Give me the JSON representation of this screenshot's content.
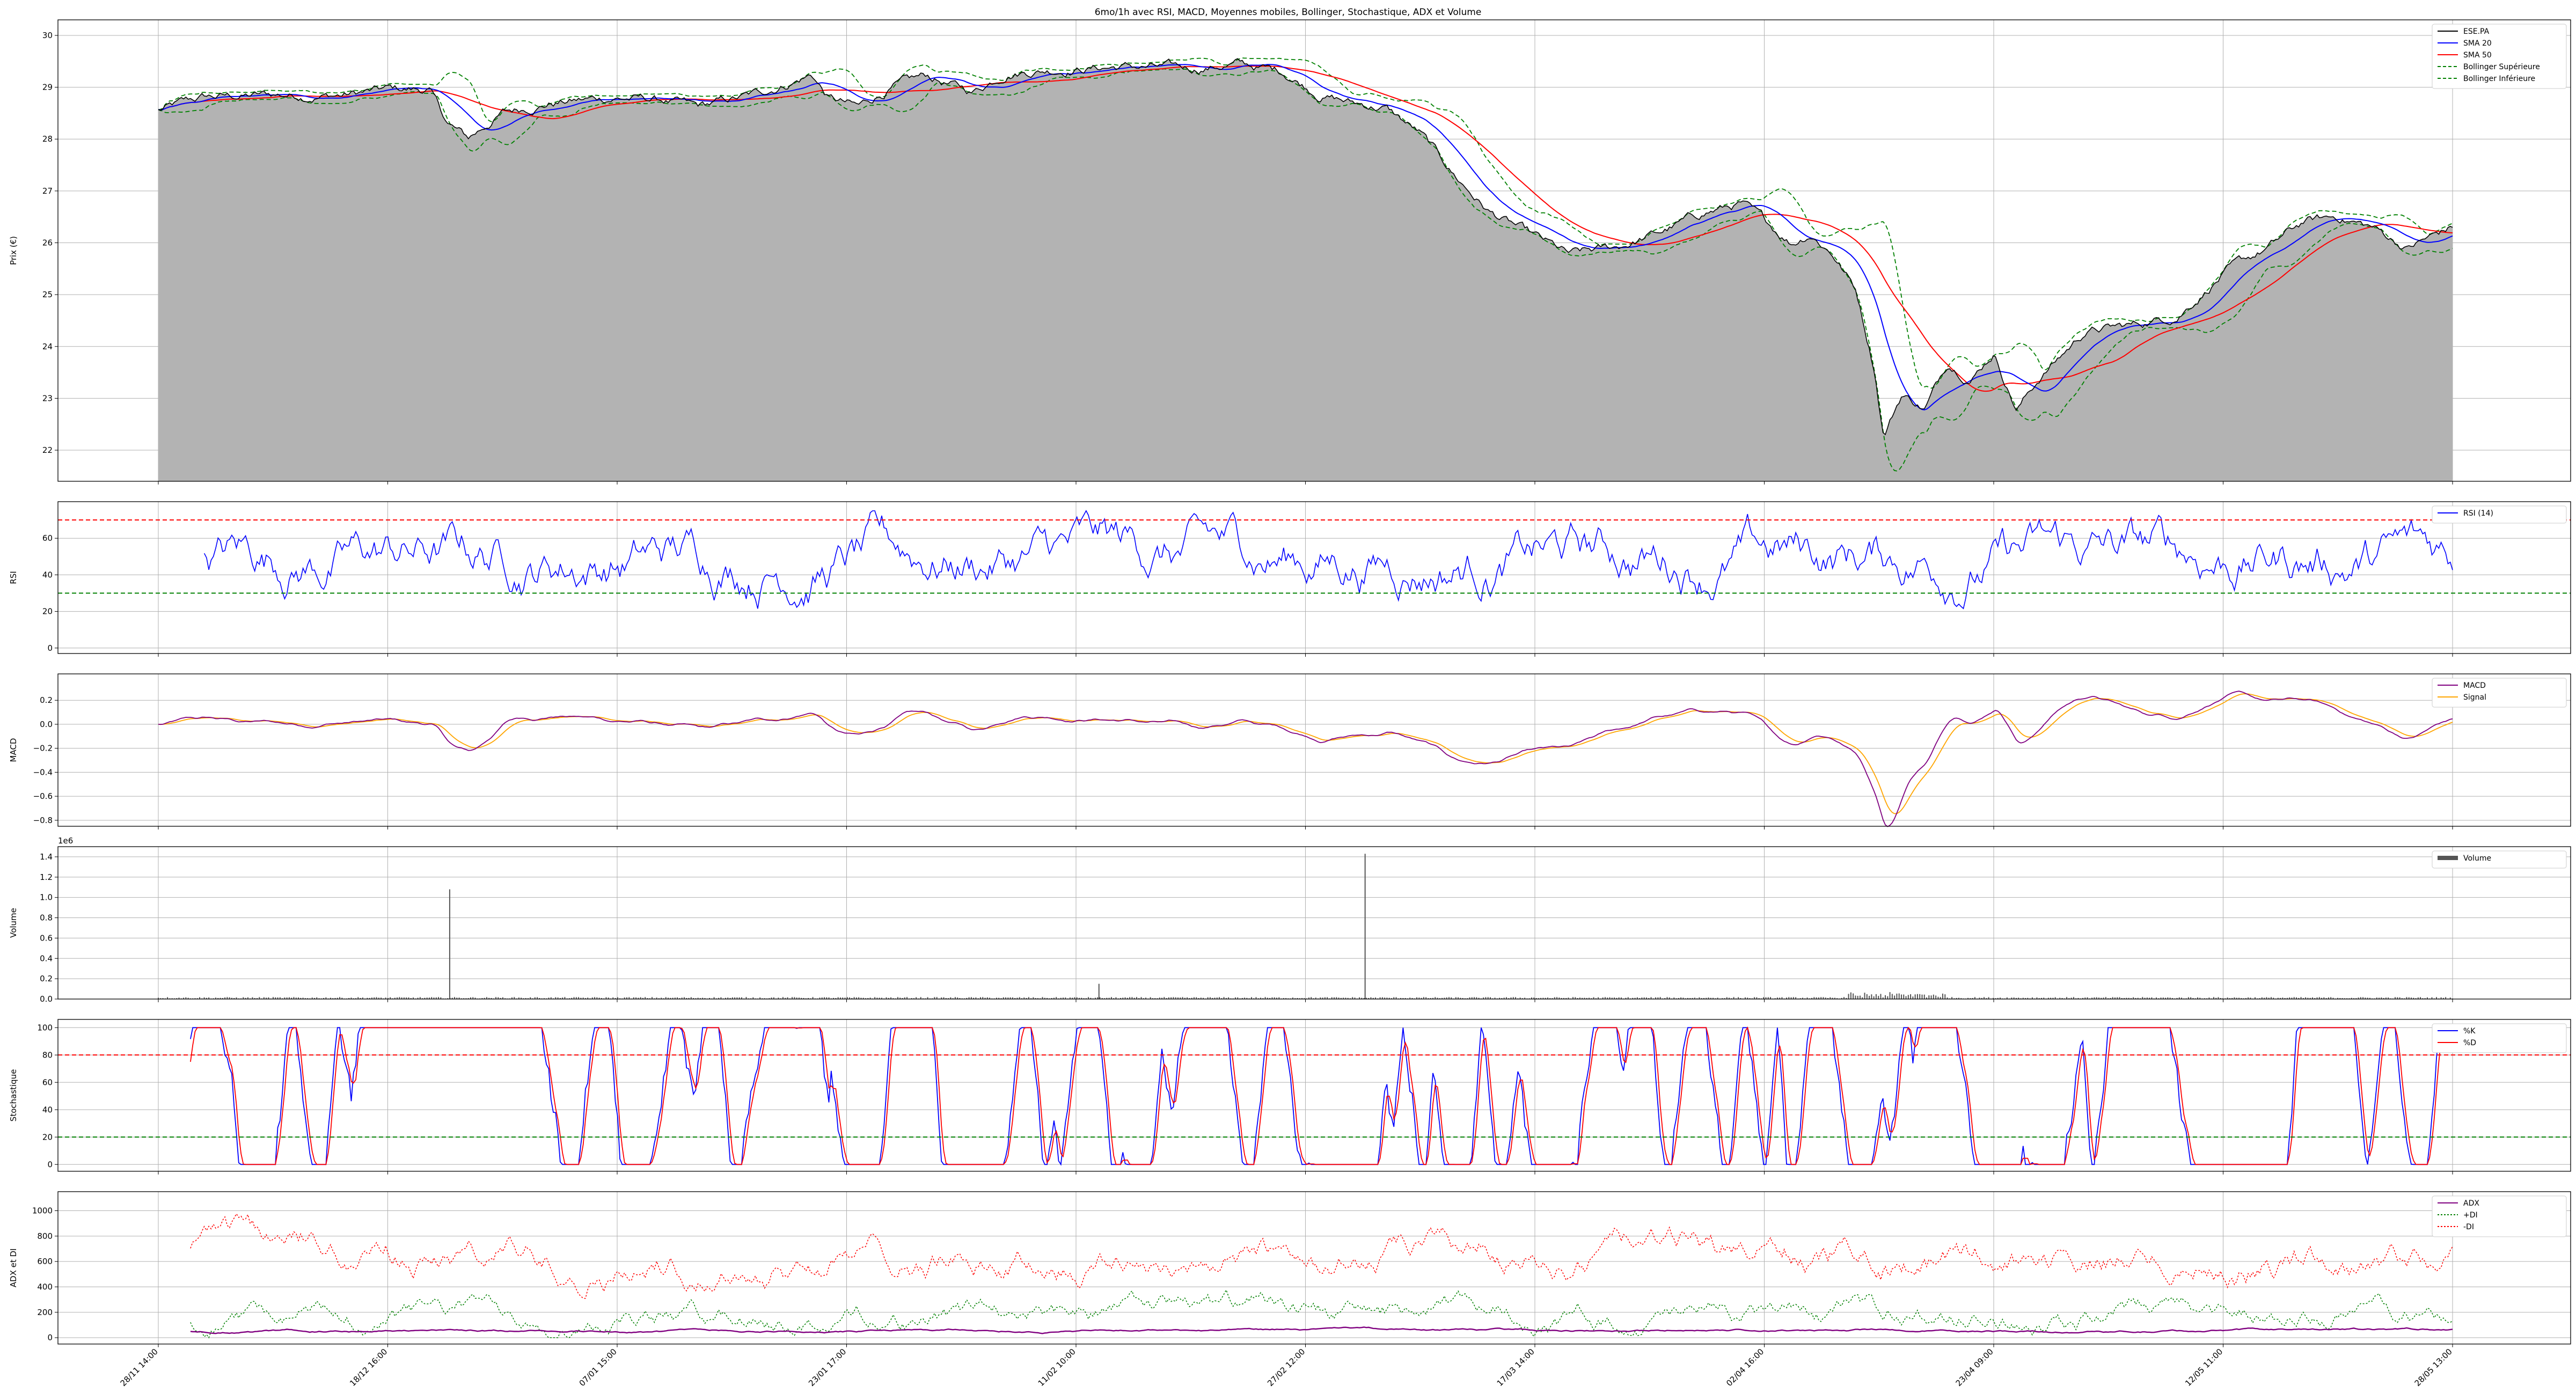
{
  "title": "6mo/1h avec RSI, MACD, Moyennes mobiles, Bollinger, Stochastique, ADX et Volume",
  "colors": {
    "price": "#000000",
    "price_fill": "#b3b3b3",
    "sma20": "#0000ff",
    "sma50": "#ff0000",
    "bollinger": "#008000",
    "rsi": "#0000ff",
    "overbought": "#ff0000",
    "oversold": "#008000",
    "macd": "#800080",
    "signal": "#ffa500",
    "volume": "#555555",
    "k": "#0000ff",
    "d": "#ff0000",
    "adx": "#800080",
    "plus_di": "#008000",
    "minus_di": "#ff0000"
  },
  "chart_data": [
    {
      "id": "price",
      "type": "area",
      "ylabel": "Prix (€)",
      "ylim": [
        21.4,
        30.3
      ],
      "yticks": [
        22,
        23,
        24,
        25,
        26,
        27,
        28,
        29,
        30
      ],
      "grid": true,
      "legend_position": "top-right",
      "legend": [
        "ESE.PA",
        "SMA 20",
        "SMA 50",
        "Bollinger Supérieure",
        "Bollinger Inférieure"
      ],
      "series": [
        {
          "name": "ESE.PA",
          "x": [
            0,
            5,
            10,
            15,
            20,
            25,
            30,
            34,
            38,
            42,
            46,
            50,
            55,
            60,
            65,
            70,
            74,
            78,
            81,
            84,
            87,
            90,
            93,
            96,
            100
          ],
          "y": [
            28.55,
            28.85,
            28.8,
            28.95,
            28.4,
            28.9,
            28.7,
            28.7,
            29.3,
            28.7,
            29.3,
            29.35,
            29.35,
            29.4,
            28.7,
            28.4,
            26.8,
            25.8,
            25.9,
            26.8,
            26.1,
            22.3,
            23.8,
            22.9,
            24.3
          ]
        },
        {
          "name": "SMA 20",
          "x": [
            0,
            5,
            10,
            15,
            20,
            25,
            30,
            34,
            38,
            42,
            46,
            50,
            55,
            60,
            65,
            70,
            74,
            78,
            81,
            84,
            87,
            90,
            93,
            96,
            100
          ],
          "y": [
            28.6,
            28.8,
            28.8,
            28.95,
            28.5,
            28.8,
            28.75,
            28.7,
            29.2,
            28.8,
            29.2,
            29.3,
            29.35,
            29.4,
            28.9,
            28.5,
            27.2,
            26.0,
            25.9,
            26.6,
            26.3,
            23.2,
            23.7,
            23.2,
            24.2
          ]
        },
        {
          "name": "SMA 50",
          "x": [
            0,
            5,
            10,
            15,
            20,
            25,
            30,
            34,
            38,
            42,
            46,
            50,
            55,
            60,
            65,
            70,
            74,
            78,
            81,
            84,
            87,
            90,
            93,
            96,
            100
          ],
          "y": [
            28.6,
            28.75,
            28.8,
            28.9,
            28.7,
            28.75,
            28.75,
            28.7,
            29.05,
            28.9,
            29.1,
            29.25,
            29.3,
            29.3,
            29.1,
            28.8,
            27.8,
            26.3,
            25.9,
            26.4,
            26.5,
            24.2,
            23.5,
            23.3,
            24.0
          ]
        },
        {
          "name": "Bollinger Supérieure",
          "x": [
            0,
            5,
            10,
            15,
            20,
            25,
            30,
            34,
            38,
            42,
            46,
            50,
            55,
            60,
            65,
            70,
            74,
            78,
            81,
            84,
            87,
            90,
            93,
            96,
            100
          ],
          "y": [
            28.75,
            29.0,
            29.0,
            29.1,
            29.2,
            29.0,
            29.0,
            28.9,
            29.6,
            29.3,
            29.6,
            29.5,
            29.5,
            29.5,
            29.3,
            29.0,
            28.3,
            26.3,
            26.1,
            27.0,
            26.8,
            24.0,
            24.2,
            23.9,
            24.6
          ]
        },
        {
          "name": "Bollinger Inférieure",
          "x": [
            0,
            5,
            10,
            15,
            20,
            25,
            30,
            34,
            38,
            42,
            46,
            50,
            55,
            60,
            65,
            70,
            74,
            78,
            81,
            84,
            87,
            90,
            93,
            96,
            100
          ],
          "y": [
            28.45,
            28.6,
            28.6,
            28.8,
            27.8,
            28.6,
            28.5,
            28.5,
            28.8,
            28.3,
            28.8,
            29.1,
            29.2,
            29.3,
            28.5,
            28.0,
            26.1,
            25.6,
            25.6,
            26.2,
            25.8,
            22.4,
            23.2,
            22.5,
            23.8
          ]
        }
      ],
      "series_tail": "x continues to 100% over dates 28/11 → 28/05; second half values (SMA/price) follow the rebound to 26.3"
    },
    {
      "id": "rsi",
      "type": "line",
      "ylabel": "RSI",
      "ylim": [
        -3,
        80
      ],
      "yticks": [
        0,
        20,
        40,
        60
      ],
      "hlines": [
        70,
        30
      ],
      "legend": [
        "RSI (14)"
      ],
      "legend_position": "top-right",
      "grid": true
    },
    {
      "id": "macd",
      "type": "line",
      "ylabel": "MACD",
      "ylim": [
        -0.85,
        0.42
      ],
      "yticks": [
        -0.8,
        -0.6,
        -0.4,
        -0.2,
        0.0,
        0.2
      ],
      "legend": [
        "MACD",
        "Signal"
      ],
      "legend_position": "top-right",
      "grid": true
    },
    {
      "id": "volume",
      "type": "bar",
      "ylabel": "Volume",
      "ylim": [
        0,
        1.5
      ],
      "yticks": [
        0.0,
        0.2,
        0.4,
        0.6,
        0.8,
        1.0,
        1.2,
        1.4
      ],
      "offset_label": "1e6",
      "legend": [
        "Volume"
      ],
      "legend_position": "top-right",
      "grid": true,
      "spikes": [
        {
          "x": 12.7,
          "v": 1.08
        },
        {
          "x": 52.6,
          "v": 1.43
        },
        {
          "x": 41.0,
          "v": 0.15
        }
      ]
    },
    {
      "id": "stoch",
      "type": "line",
      "ylabel": "Stochastique",
      "ylim": [
        -5,
        106
      ],
      "yticks": [
        0,
        20,
        40,
        60,
        80,
        100
      ],
      "hlines": [
        80,
        20
      ],
      "legend": [
        "%K",
        "%D"
      ],
      "legend_position": "top-right",
      "grid": true
    },
    {
      "id": "adx",
      "type": "line",
      "ylabel": "ADX et DI",
      "ylim": [
        -50,
        1150
      ],
      "yticks": [
        0,
        200,
        400,
        600,
        800,
        1000
      ],
      "legend": [
        "ADX",
        "+DI",
        "-DI"
      ],
      "legend_position": "top-right",
      "grid": true
    }
  ],
  "xticks": [
    "28/11 14:00",
    "18/12 16:00",
    "07/01 15:00",
    "23/01 17:00",
    "11/02 10:00",
    "27/02 12:00",
    "17/03 14:00",
    "02/04 16:00",
    "23/04 09:00",
    "12/05 11:00",
    "28/05 13:00"
  ]
}
